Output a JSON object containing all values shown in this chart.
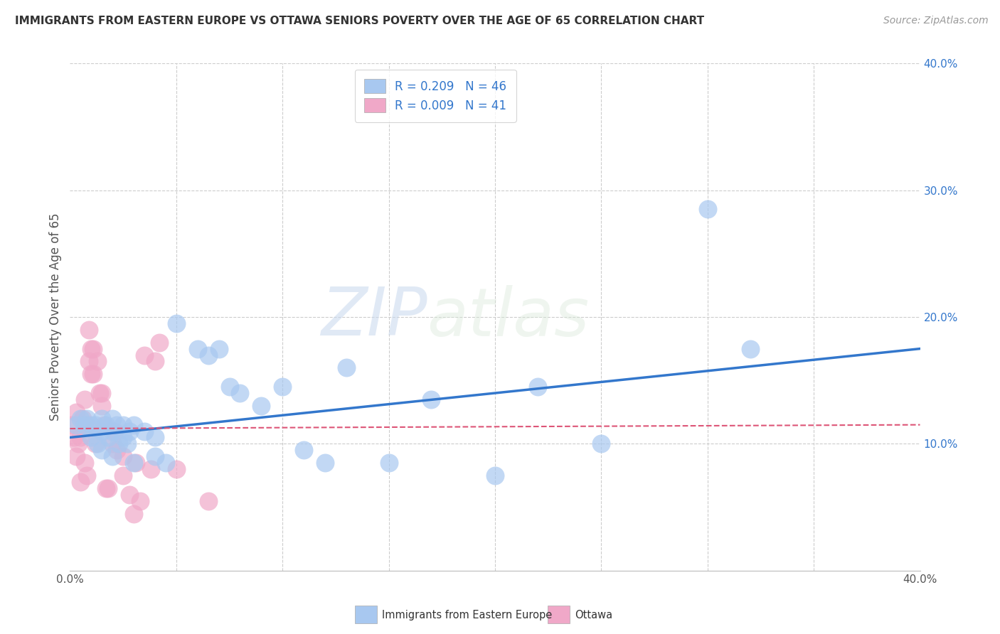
{
  "title": "IMMIGRANTS FROM EASTERN EUROPE VS OTTAWA SENIORS POVERTY OVER THE AGE OF 65 CORRELATION CHART",
  "source": "Source: ZipAtlas.com",
  "ylabel": "Seniors Poverty Over the Age of 65",
  "xlim": [
    0.0,
    0.4
  ],
  "ylim": [
    0.0,
    0.4
  ],
  "yticks": [
    0.1,
    0.2,
    0.3,
    0.4
  ],
  "ytick_labels": [
    "10.0%",
    "20.0%",
    "30.0%",
    "40.0%"
  ],
  "xticks": [
    0.0,
    0.05,
    0.1,
    0.15,
    0.2,
    0.25,
    0.3,
    0.35,
    0.4
  ],
  "legend_blue_label": "R = 0.209   N = 46",
  "legend_pink_label": "R = 0.009   N = 41",
  "legend_bottom_blue": "Immigrants from Eastern Europe",
  "legend_bottom_pink": "Ottawa",
  "blue_color": "#a8c8f0",
  "pink_color": "#f0a8c8",
  "blue_line_color": "#3377cc",
  "pink_line_color": "#dd5577",
  "watermark_zip": "ZIP",
  "watermark_atlas": "atlas",
  "grid_color": "#cccccc",
  "background_color": "#ffffff",
  "blue_scatter_x": [
    0.003,
    0.005,
    0.007,
    0.008,
    0.01,
    0.01,
    0.012,
    0.013,
    0.015,
    0.015,
    0.015,
    0.017,
    0.018,
    0.02,
    0.02,
    0.02,
    0.022,
    0.023,
    0.025,
    0.025,
    0.027,
    0.028,
    0.03,
    0.03,
    0.035,
    0.04,
    0.04,
    0.045,
    0.05,
    0.06,
    0.065,
    0.07,
    0.075,
    0.08,
    0.09,
    0.1,
    0.11,
    0.12,
    0.13,
    0.15,
    0.17,
    0.2,
    0.22,
    0.25,
    0.3,
    0.32
  ],
  "blue_scatter_y": [
    0.115,
    0.12,
    0.115,
    0.12,
    0.115,
    0.105,
    0.115,
    0.1,
    0.12,
    0.11,
    0.095,
    0.115,
    0.105,
    0.12,
    0.11,
    0.09,
    0.115,
    0.1,
    0.115,
    0.105,
    0.1,
    0.11,
    0.115,
    0.085,
    0.11,
    0.09,
    0.105,
    0.085,
    0.195,
    0.175,
    0.17,
    0.175,
    0.145,
    0.14,
    0.13,
    0.145,
    0.095,
    0.085,
    0.16,
    0.085,
    0.135,
    0.075,
    0.145,
    0.1,
    0.285,
    0.175
  ],
  "pink_scatter_x": [
    0.001,
    0.002,
    0.003,
    0.003,
    0.004,
    0.005,
    0.005,
    0.006,
    0.007,
    0.007,
    0.008,
    0.008,
    0.009,
    0.009,
    0.01,
    0.01,
    0.011,
    0.011,
    0.012,
    0.013,
    0.014,
    0.015,
    0.015,
    0.016,
    0.017,
    0.018,
    0.02,
    0.021,
    0.022,
    0.025,
    0.025,
    0.028,
    0.03,
    0.031,
    0.033,
    0.035,
    0.038,
    0.04,
    0.042,
    0.05,
    0.065
  ],
  "pink_scatter_y": [
    0.115,
    0.105,
    0.125,
    0.09,
    0.1,
    0.105,
    0.07,
    0.12,
    0.135,
    0.085,
    0.115,
    0.075,
    0.19,
    0.165,
    0.175,
    0.155,
    0.175,
    0.155,
    0.1,
    0.165,
    0.14,
    0.14,
    0.13,
    0.115,
    0.065,
    0.065,
    0.1,
    0.11,
    0.095,
    0.075,
    0.09,
    0.06,
    0.045,
    0.085,
    0.055,
    0.17,
    0.08,
    0.165,
    0.18,
    0.08,
    0.055
  ],
  "blue_trend_x": [
    0.0,
    0.4
  ],
  "blue_trend_y": [
    0.105,
    0.175
  ],
  "pink_trend_x": [
    0.0,
    0.4
  ],
  "pink_trend_y": [
    0.112,
    0.115
  ],
  "title_fontsize": 11,
  "source_fontsize": 10,
  "tick_fontsize": 11,
  "ylabel_fontsize": 12,
  "legend_fontsize": 12
}
